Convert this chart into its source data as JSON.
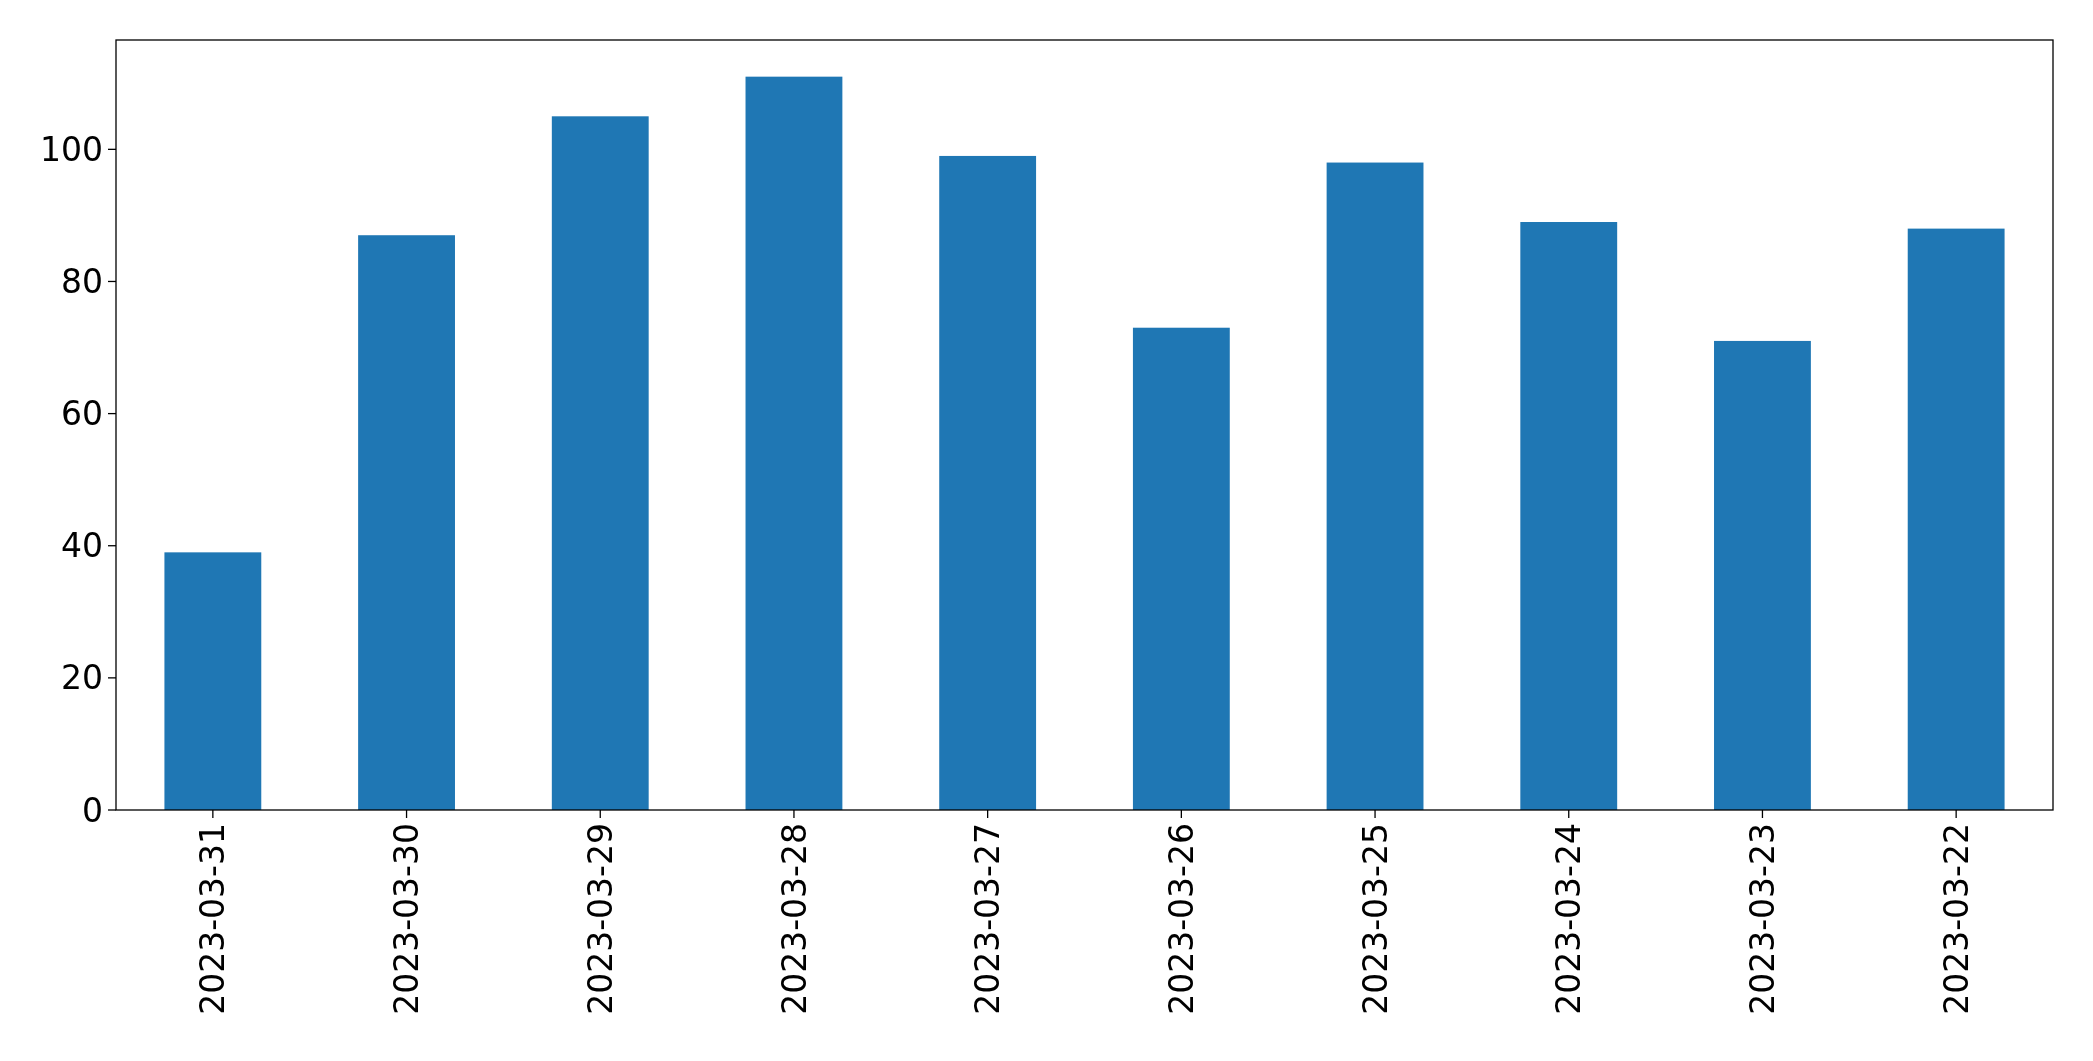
{
  "chart_data": {
    "type": "bar",
    "categories": [
      "2023-03-31",
      "2023-03-30",
      "2023-03-29",
      "2023-03-28",
      "2023-03-27",
      "2023-03-26",
      "2023-03-25",
      "2023-03-24",
      "2023-03-23",
      "2023-03-22"
    ],
    "values": [
      39,
      87,
      105,
      111,
      99,
      73,
      98,
      89,
      71,
      88
    ],
    "color": "#1f77b4",
    "ylim": [
      0,
      116.55
    ],
    "yticks": [
      0,
      20,
      40,
      60,
      80,
      100
    ],
    "grid": false
  }
}
